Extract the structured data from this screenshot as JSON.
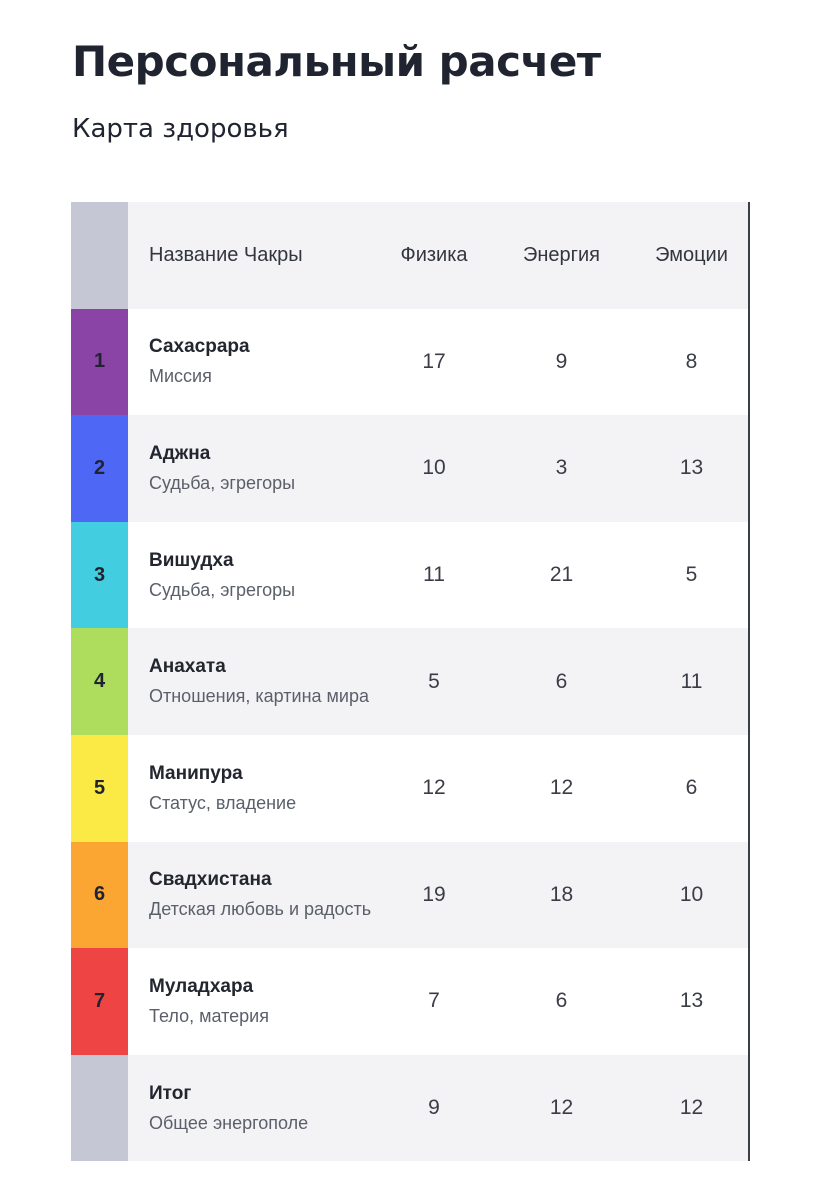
{
  "header": {
    "title": "Персональный расчет",
    "subtitle": "Карта здоровья"
  },
  "table": {
    "columns": [
      "Название Чакры",
      "Физика",
      "Энергия",
      "Эмоции"
    ],
    "header_strip_color": "#c5c7d4",
    "rows": [
      {
        "num": "1",
        "color": "#8a44a6",
        "name": "Сахасрара",
        "desc": "Миссия",
        "physics": "17",
        "energy": "9",
        "emotions": "8"
      },
      {
        "num": "2",
        "color": "#4e67f5",
        "name": "Аджна",
        "desc": "Судьба, эгрегоры",
        "physics": "10",
        "energy": "3",
        "emotions": "13"
      },
      {
        "num": "3",
        "color": "#42cde0",
        "name": "Вишудха",
        "desc": "Судьба, эгрегоры",
        "physics": "11",
        "energy": "21",
        "emotions": "5"
      },
      {
        "num": "4",
        "color": "#aedc5c",
        "name": "Анахата",
        "desc": "Отношения, картина мира",
        "physics": "5",
        "energy": "6",
        "emotions": "11"
      },
      {
        "num": "5",
        "color": "#fbe945",
        "name": "Манипура",
        "desc": "Статус, владение",
        "physics": "12",
        "energy": "12",
        "emotions": "6"
      },
      {
        "num": "6",
        "color": "#fba532",
        "name": "Свадхистана",
        "desc": "Детская любовь и радость",
        "physics": "19",
        "energy": "18",
        "emotions": "10"
      },
      {
        "num": "7",
        "color": "#ee4444",
        "name": "Муладхара",
        "desc": "Тело, материя",
        "physics": "7",
        "energy": "6",
        "emotions": "13"
      }
    ],
    "total": {
      "num": "",
      "color": "#c5c7d4",
      "name": "Итог",
      "desc": "Общее энергополе",
      "physics": "9",
      "energy": "12",
      "emotions": "12"
    }
  }
}
